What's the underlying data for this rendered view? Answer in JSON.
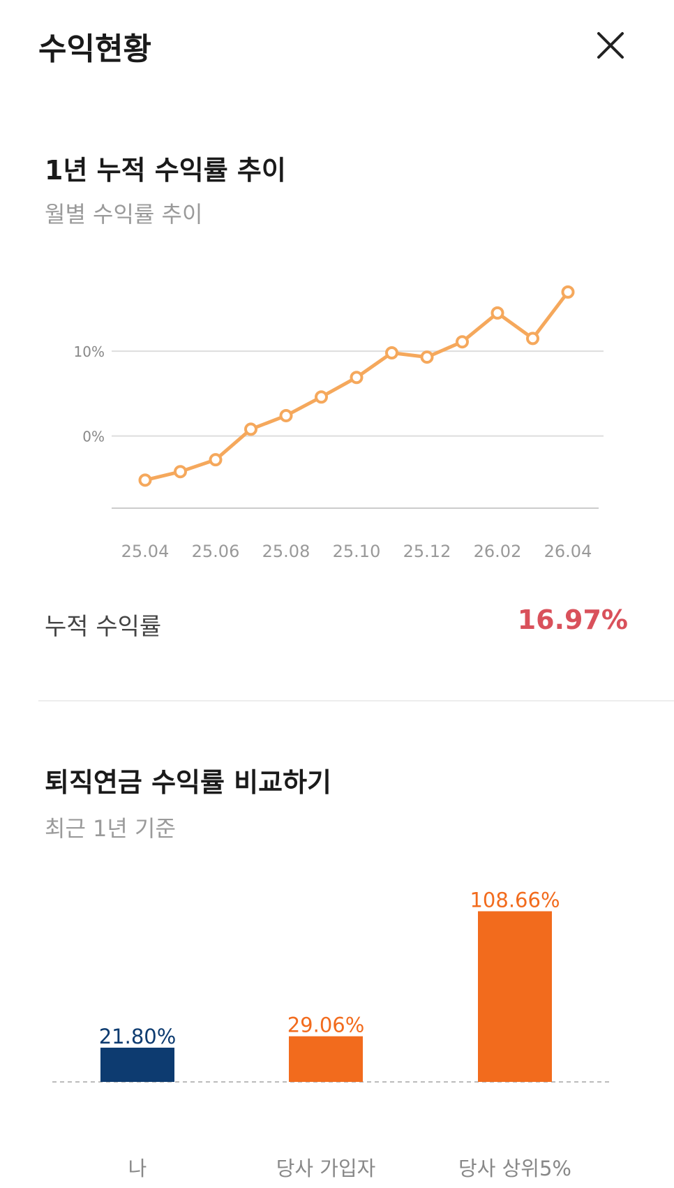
{
  "header": {
    "title": "수익현황"
  },
  "trend": {
    "title": "1년 누적 수익률 추이",
    "subtitle": "월별 수익률 추이",
    "cumulative_label": "누적 수익률",
    "cumulative_value": "16.97%"
  },
  "compare": {
    "title": "퇴직연금 수익률 비교하기",
    "subtitle": "최근 1년 기준"
  },
  "colors": {
    "line": "#f5a85c",
    "bar_me": "#0d3b70",
    "bar_others": "#f26b1d",
    "accent_red": "#d9515b"
  },
  "chart_data": [
    {
      "type": "line",
      "x": [
        "25.04",
        "25.05",
        "25.06",
        "25.07",
        "25.08",
        "25.09",
        "25.10",
        "25.11",
        "25.12",
        "26.01",
        "26.02",
        "26.03",
        "26.04"
      ],
      "xticks": [
        "25.04",
        "25.06",
        "25.08",
        "25.10",
        "25.12",
        "26.02",
        "26.04"
      ],
      "series": [
        {
          "values": [
            -5.2,
            -4.2,
            -2.8,
            0.8,
            2.4,
            4.6,
            6.9,
            9.8,
            9.3,
            11.1,
            14.5,
            11.5,
            16.97
          ]
        }
      ],
      "yticks": [
        {
          "value": 10,
          "label": "10%"
        },
        {
          "value": 0,
          "label": "0%"
        }
      ],
      "ylim": [
        -6.2,
        17
      ],
      "grid": true
    },
    {
      "type": "bar",
      "categories": [
        "나",
        "당사 가입자",
        "당사 상위5%"
      ],
      "values": [
        21.8,
        29.06,
        108.66
      ],
      "value_labels": [
        "21.80%",
        "29.06%",
        "108.66%"
      ]
    }
  ]
}
